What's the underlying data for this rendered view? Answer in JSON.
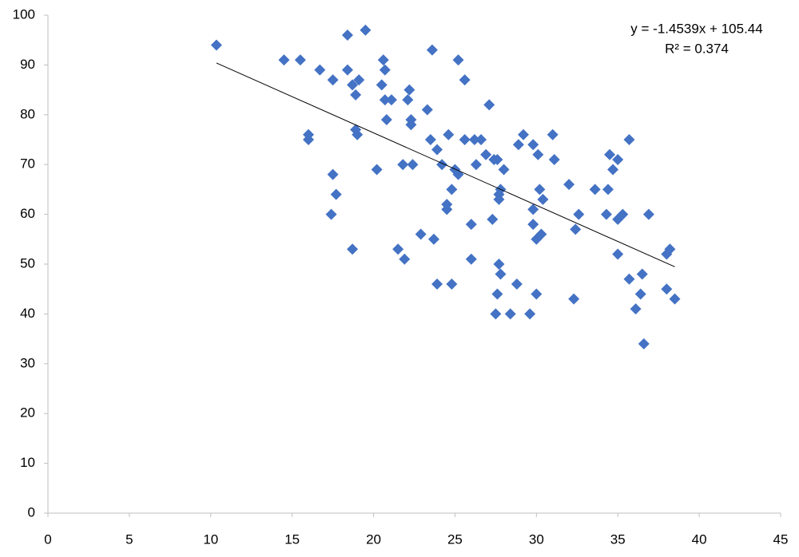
{
  "chart_data": {
    "type": "scatter",
    "x": [
      10.35,
      14.5,
      15.5,
      16.7,
      17.5,
      16.0,
      16.0,
      17.5,
      17.7,
      17.4,
      18.7,
      18.4,
      19.5,
      18.4,
      18.7,
      19.1,
      18.9,
      18.9,
      19.0,
      20.2,
      20.6,
      20.7,
      20.5,
      20.7,
      21.1,
      20.8,
      21.5,
      21.9,
      21.8,
      22.4,
      22.2,
      22.1,
      22.3,
      22.3,
      22.9,
      23.6,
      23.3,
      23.5,
      23.9,
      23.7,
      23.9,
      24.2,
      24.6,
      24.5,
      24.5,
      24.8,
      25.0,
      25.2,
      24.8,
      25.2,
      25.6,
      25.6,
      26.2,
      26.6,
      26.3,
      26.0,
      26.0,
      27.1,
      26.9,
      27.4,
      27.6,
      27.3,
      27.8,
      27.7,
      27.7,
      28.0,
      27.7,
      27.8,
      27.6,
      27.5,
      28.4,
      28.8,
      28.9,
      29.2,
      29.8,
      30.1,
      29.8,
      29.8,
      30.0,
      30.3,
      30.2,
      30.4,
      29.6,
      30.0,
      31.0,
      31.1,
      32.0,
      32.6,
      32.4,
      32.3,
      33.6,
      34.3,
      34.4,
      34.5,
      34.7,
      35.0,
      35.0,
      35.3,
      35.0,
      35.7,
      35.7,
      36.1,
      36.4,
      36.5,
      36.6,
      36.9,
      38.0,
      38.2,
      38.0,
      38.5
    ],
    "series": [
      {
        "color": "#4472c4",
        "values": [
          94,
          91,
          91,
          89,
          87,
          75,
          76,
          68,
          64,
          60,
          53,
          96,
          97,
          89,
          86,
          87,
          84,
          77,
          76,
          69,
          91,
          89,
          86,
          83,
          83,
          79,
          53,
          51,
          70,
          70,
          85,
          83,
          79,
          78,
          56,
          93,
          81,
          75,
          73,
          55,
          46,
          70,
          76,
          62,
          61,
          65,
          69,
          68,
          46,
          91,
          87,
          75,
          75,
          75,
          70,
          58,
          51,
          82,
          72,
          71,
          71,
          59,
          65,
          64,
          63,
          69,
          50,
          48,
          44,
          40,
          40,
          46,
          74,
          76,
          74,
          72,
          61,
          58,
          55,
          56,
          65,
          63,
          40,
          44,
          76,
          71,
          66,
          60,
          57,
          43,
          65,
          60,
          65,
          72,
          69,
          71,
          59,
          60,
          52,
          75,
          47,
          41,
          44,
          48,
          34,
          60,
          52,
          53,
          45,
          43
        ]
      }
    ],
    "xlim": [
      0,
      45
    ],
    "xticks": [
      0,
      5,
      10,
      15,
      20,
      25,
      30,
      35,
      40,
      45
    ],
    "ylim": [
      0,
      100
    ],
    "yticks": [
      0,
      10,
      20,
      30,
      40,
      50,
      60,
      70,
      80,
      90,
      100
    ],
    "trendline": {
      "slope": -1.4539,
      "intercept": 105.44,
      "equation": "y = -1.4539x + 105.44",
      "r_squared": "R² = 0.374"
    }
  }
}
